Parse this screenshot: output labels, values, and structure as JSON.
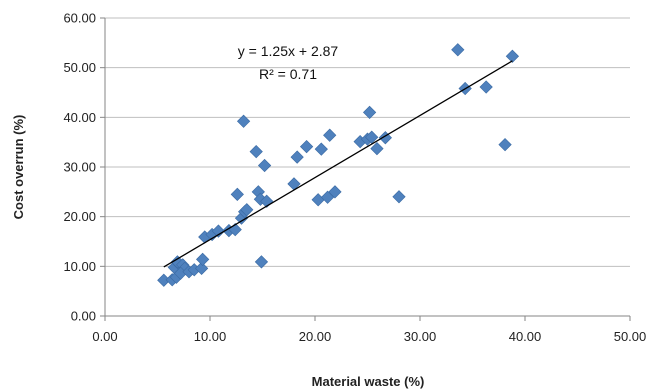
{
  "chart_data": {
    "type": "scatter",
    "xlabel": "Material waste (%)",
    "ylabel": "Cost overrun (%)",
    "xlim": [
      0,
      50
    ],
    "ylim": [
      0,
      60
    ],
    "x_ticks": [
      "0.00",
      "10.00",
      "20.00",
      "30.00",
      "40.00",
      "50.00"
    ],
    "y_ticks": [
      "0.00",
      "10.00",
      "20.00",
      "30.00",
      "40.00",
      "50.00",
      "60.00"
    ],
    "grid": "horizontal",
    "marker_color": "#4F81BD",
    "annotations": {
      "equation": "y = 1.25x + 2.87",
      "r_squared": "R² = 0.71"
    },
    "trendline": {
      "slope": 1.25,
      "intercept": 2.87,
      "x_range": [
        5.6,
        38.8
      ]
    },
    "points": [
      [
        5.6,
        7.2
      ],
      [
        6.4,
        7.3
      ],
      [
        6.8,
        7.8
      ],
      [
        6.6,
        9.8
      ],
      [
        7.0,
        10.6
      ],
      [
        6.9,
        10.9
      ],
      [
        7.4,
        10.3
      ],
      [
        7.6,
        9.6
      ],
      [
        7.2,
        8.6
      ],
      [
        8.0,
        8.9
      ],
      [
        8.5,
        9.3
      ],
      [
        9.2,
        9.6
      ],
      [
        9.3,
        11.4
      ],
      [
        9.5,
        15.9
      ],
      [
        10.2,
        16.4
      ],
      [
        10.8,
        17.1
      ],
      [
        11.8,
        17.2
      ],
      [
        12.4,
        17.4
      ],
      [
        12.6,
        24.5
      ],
      [
        13.0,
        19.7
      ],
      [
        13.3,
        21.0
      ],
      [
        13.5,
        21.4
      ],
      [
        13.2,
        39.2
      ],
      [
        14.4,
        33.1
      ],
      [
        14.6,
        25.0
      ],
      [
        14.8,
        23.5
      ],
      [
        14.9,
        10.9
      ],
      [
        15.2,
        30.3
      ],
      [
        15.4,
        23.1
      ],
      [
        18.0,
        26.6
      ],
      [
        18.3,
        32.0
      ],
      [
        19.2,
        34.1
      ],
      [
        20.3,
        23.4
      ],
      [
        20.6,
        33.6
      ],
      [
        21.2,
        23.9
      ],
      [
        21.4,
        36.4
      ],
      [
        21.9,
        25.0
      ],
      [
        24.3,
        35.1
      ],
      [
        25.0,
        35.6
      ],
      [
        25.2,
        41.0
      ],
      [
        25.4,
        36.0
      ],
      [
        25.9,
        33.7
      ],
      [
        26.7,
        35.9
      ],
      [
        28.0,
        24.0
      ],
      [
        33.6,
        53.6
      ],
      [
        34.3,
        45.8
      ],
      [
        36.3,
        46.1
      ],
      [
        38.1,
        34.5
      ],
      [
        38.8,
        52.3
      ]
    ]
  }
}
